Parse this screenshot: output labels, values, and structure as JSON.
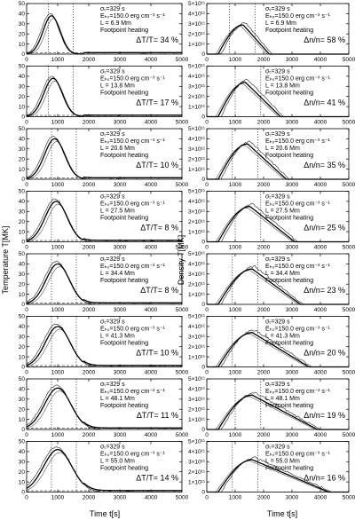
{
  "chart_data": {
    "type": "line",
    "layout": "8 rows x 2 columns of panels",
    "left_column": {
      "ylabel": "Temperature T[MK]",
      "xlabel": "Time t[s]",
      "xlim": [
        0,
        5000
      ],
      "ylim": [
        0,
        50
      ],
      "yticks": [
        "0",
        "10",
        "20",
        "30",
        "40",
        "50"
      ],
      "xticks": [
        "0",
        "1000",
        "2000",
        "3000",
        "4000",
        "5000"
      ]
    },
    "right_column": {
      "ylabel": "Density T[MK]",
      "xlabel": "Time t[s]",
      "xlim": [
        0,
        5000
      ],
      "ylim": [
        0,
        5
      ],
      "yticks": [
        "0",
        "1×10¹¹",
        "2×10¹¹",
        "3×10¹¹",
        "4×10¹¹",
        "5×10¹¹"
      ],
      "xticks": [
        "0",
        "1000",
        "2000",
        "3000",
        "4000",
        "5000"
      ]
    },
    "annotation": {
      "sigma": "σₜ=329 s",
      "eh": "Eₕ₀=150.0 erg cm⁻³ s⁻¹",
      "heating": "Footpoint heating"
    },
    "rows": [
      {
        "L": "L  =   6.9 Mm",
        "dT": "ΔT/T= 34 %",
        "dn": "Δn/n= 58 %",
        "t_peak": 800,
        "temp_peak": 38,
        "temp_width": 380,
        "dens_peak": 2.9,
        "dens_start": 400,
        "dens_end": 2200,
        "vlines": [
          700,
          1500
        ],
        "vlines_r": [
          800,
          1700
        ]
      },
      {
        "L": "L  = 13.8 Mm",
        "dT": "ΔT/T= 17 %",
        "dn": "Δn/n= 41 %",
        "t_peak": 850,
        "temp_peak": 38,
        "temp_width": 420,
        "dens_peak": 3.4,
        "dens_start": 400,
        "dens_end": 2600,
        "vlines": [
          700,
          1500
        ],
        "vlines_r": [
          1000,
          1900
        ]
      },
      {
        "L": "L  = 20.6 Mm",
        "dT": "ΔT/T= 10 %",
        "dn": "Δn/n= 35 %",
        "t_peak": 900,
        "temp_peak": 40,
        "temp_width": 460,
        "dens_peak": 3.5,
        "dens_start": 400,
        "dens_end": 2800,
        "vlines": [
          800,
          1600
        ],
        "vlines_r": [
          900,
          1800
        ]
      },
      {
        "L": "L  = 27.5 Mm",
        "dT": "ΔT/T=  8 %",
        "dn": "Δn/n= 25 %",
        "t_peak": 950,
        "temp_peak": 40,
        "temp_width": 500,
        "dens_peak": 3.5,
        "dens_start": 400,
        "dens_end": 3100,
        "vlines": [
          800,
          1600
        ],
        "vlines_r": [
          1000,
          1900
        ]
      },
      {
        "L": "L  = 34.4 Mm",
        "dT": "ΔT/T=  8 %",
        "dn": "Δn/n= 23 %",
        "t_peak": 1000,
        "temp_peak": 40,
        "temp_width": 530,
        "dens_peak": 3.5,
        "dens_start": 400,
        "dens_end": 3300,
        "vlines": [
          800,
          1600
        ],
        "vlines_r": [
          900,
          1800
        ]
      },
      {
        "L": "L  = 41.3 Mm",
        "dT": "ΔT/T= 10 %",
        "dn": "Δn/n= 20 %",
        "t_peak": 1000,
        "temp_peak": 40,
        "temp_width": 560,
        "dens_peak": 3.4,
        "dens_start": 400,
        "dens_end": 3600,
        "vlines": [
          800,
          1600
        ],
        "vlines_r": [
          900,
          1800
        ]
      },
      {
        "L": "L  = 48.1 Mm",
        "dT": "ΔT/T= 11 %",
        "dn": "Δn/n= 19 %",
        "t_peak": 1000,
        "temp_peak": 41,
        "temp_width": 600,
        "dens_peak": 3.4,
        "dens_start": 400,
        "dens_end": 3900,
        "vlines": [
          800,
          1600
        ],
        "vlines_r": [
          1000,
          1900
        ]
      },
      {
        "L": "L  = 55.0 Mm",
        "dT": "ΔT/T= 14 %",
        "dn": "Δn/n= 16 %",
        "t_peak": 1000,
        "temp_peak": 42,
        "temp_width": 640,
        "dens_peak": 3.2,
        "dens_start": 400,
        "dens_end": 4300,
        "vlines": [
          800,
          1600
        ],
        "vlines_r": [
          900,
          1800
        ]
      }
    ]
  }
}
